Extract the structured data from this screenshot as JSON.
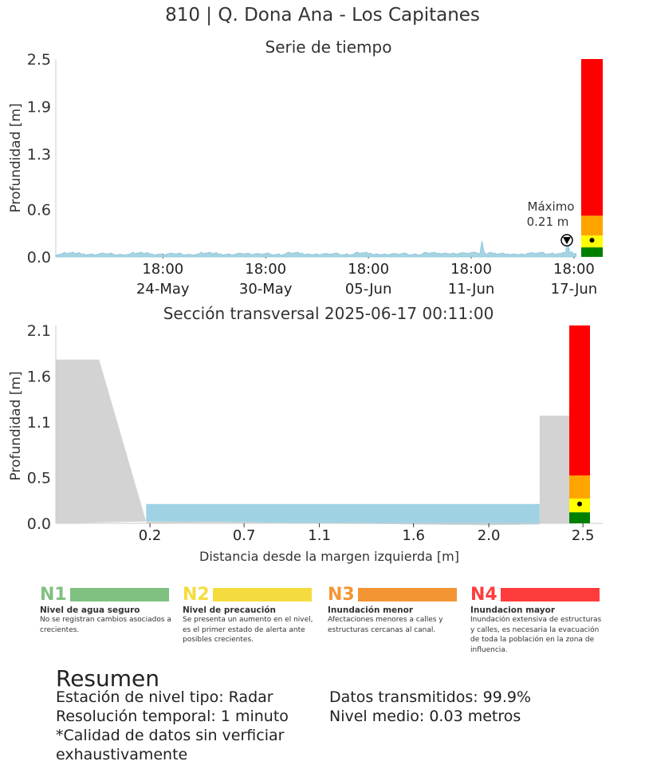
{
  "title": "810 | Q. Dona Ana - Los Capitanes",
  "chart_data": [
    {
      "type": "area",
      "title": "Serie de tiempo",
      "xlabel": "",
      "ylabel": "Profundidad [m]",
      "ylim": [
        0.0,
        2.5
      ],
      "yticks": [
        "0.0",
        "0.6",
        "1.3",
        "1.9",
        "2.5"
      ],
      "ytick_values": [
        0.0,
        0.6,
        1.3,
        1.9,
        2.5
      ],
      "xtick_labels": [
        {
          "time": "18:00",
          "date": "24-May"
        },
        {
          "time": "18:00",
          "date": "30-May"
        },
        {
          "time": "18:00",
          "date": "05-Jun"
        },
        {
          "time": "18:00",
          "date": "11-Jun"
        },
        {
          "time": "18:00",
          "date": "17-Jun"
        }
      ],
      "series": [
        {
          "x": [
            "2025-05-18",
            "2025-05-19",
            "2025-05-20",
            "2025-05-21",
            "2025-05-22",
            "2025-05-23",
            "2025-05-24",
            "2025-05-25",
            "2025-05-26",
            "2025-05-27",
            "2025-05-28",
            "2025-05-29",
            "2025-05-30",
            "2025-05-31",
            "2025-06-01",
            "2025-06-02",
            "2025-06-03",
            "2025-06-04",
            "2025-06-05",
            "2025-06-06",
            "2025-06-07",
            "2025-06-08",
            "2025-06-09",
            "2025-06-10",
            "2025-06-11",
            "2025-06-12",
            "2025-06-13",
            "2025-06-14",
            "2025-06-15",
            "2025-06-16",
            "2025-06-17"
          ],
          "values": [
            0.03,
            0.05,
            0.03,
            0.04,
            0.03,
            0.05,
            0.03,
            0.04,
            0.03,
            0.05,
            0.03,
            0.04,
            0.04,
            0.03,
            0.05,
            0.03,
            0.04,
            0.03,
            0.05,
            0.03,
            0.04,
            0.03,
            0.05,
            0.04,
            0.05,
            0.2,
            0.04,
            0.03,
            0.05,
            0.04,
            0.21
          ]
        }
      ],
      "annotation": {
        "label": "Máximo",
        "value": "0.21 m",
        "x": "2025-06-17",
        "y": 0.21
      },
      "alert_bar": {
        "levels": [
          0.12,
          0.27,
          0.52,
          2.5
        ],
        "colors": [
          "#008000",
          "#ffff00",
          "#ffa500",
          "#ff0000"
        ],
        "marker": 0.21
      }
    },
    {
      "type": "area",
      "title": "Sección transversal 2025-06-17 00:11:00",
      "xlabel": "Distancia desde la margen izquierda [m]",
      "ylabel": "Profundidad [m]",
      "xlim": [
        -0.3,
        2.55
      ],
      "ylim": [
        0.0,
        2.15
      ],
      "xticks": [
        "0.2",
        "0.7",
        "1.1",
        "1.6",
        "2.0",
        "2.5"
      ],
      "xtick_values": [
        0.2,
        0.7,
        1.1,
        1.6,
        2.0,
        2.5
      ],
      "yticks": [
        "0.0",
        "0.5",
        "1.1",
        "1.6",
        "2.1"
      ],
      "ytick_values": [
        0.0,
        0.5,
        1.1,
        1.6,
        2.1
      ],
      "ground_left": {
        "x": [
          -0.3,
          -0.07,
          0.18,
          -0.3
        ],
        "y": [
          1.78,
          1.78,
          0.02,
          0.0
        ]
      },
      "channel_bed": {
        "x": [
          0.18,
          0.6,
          1.1,
          1.6,
          2.0,
          2.27
        ],
        "y": [
          0.02,
          0.015,
          0.0,
          -0.01,
          -0.02,
          -0.01
        ]
      },
      "wall_right": {
        "x0": 2.27,
        "x1": 2.52,
        "height": 1.17
      },
      "water_level": 0.21,
      "alert_bar": {
        "levels": [
          0.12,
          0.27,
          0.52,
          2.15
        ],
        "colors": [
          "#008000",
          "#ffff00",
          "#ffa500",
          "#ff0000"
        ],
        "marker": 0.21
      }
    }
  ],
  "legend": [
    {
      "code": "N1",
      "color": "#80c080",
      "title": "Nivel de agua seguro",
      "desc": "No se registran cambios asociados a crecientes."
    },
    {
      "code": "N2",
      "color": "#f5dc3e",
      "title": "Nivel de precaución",
      "desc": "Se presenta un aumento en el nivel, es el primer estado de alerta ante posibles crecientes."
    },
    {
      "code": "N3",
      "color": "#f39535",
      "title": "Inundación menor",
      "desc": "Afectaciones menores a calles y estructuras cercanas al canal."
    },
    {
      "code": "N4",
      "color": "#ff3c3c",
      "title": "Inundacion mayor",
      "desc": "Inundación extensiva de estructuras y calles, es necesaria la evacuación de toda la población en la zona de influencia."
    }
  ],
  "summary": {
    "title": "Resumen",
    "station": "Estación de nivel tipo: Radar",
    "resolution": "Resolución temporal: 1 minuto",
    "quality": "*Calidad de datos sin verficiar exhaustivamente",
    "transmitted": "Datos transmitidos: 99.9%",
    "mean_level": "Nivel medio: 0.03 metros"
  }
}
